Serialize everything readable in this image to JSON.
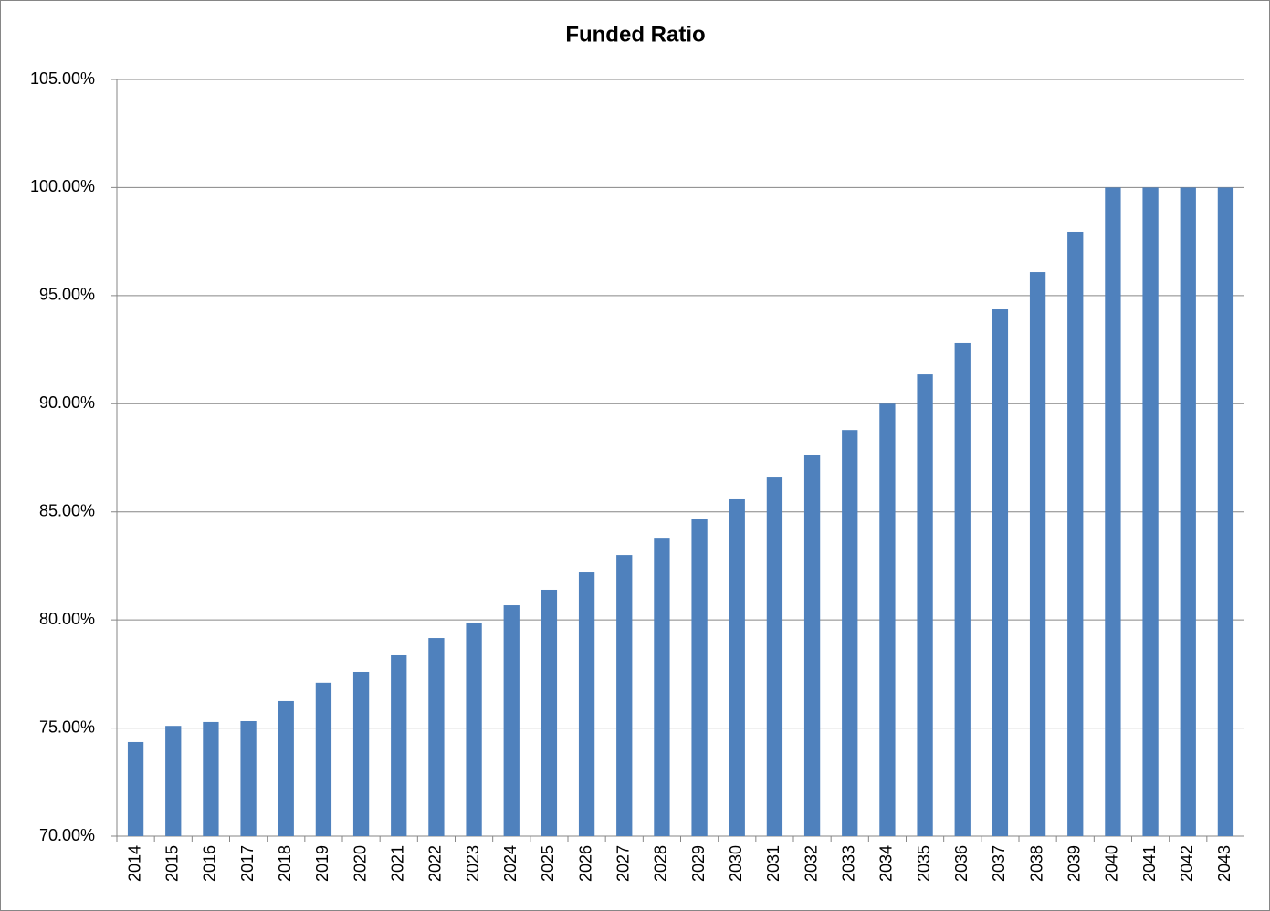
{
  "chart_data": {
    "type": "bar",
    "title": "Funded Ratio",
    "categories": [
      "2014",
      "2015",
      "2016",
      "2017",
      "2018",
      "2019",
      "2020",
      "2021",
      "2022",
      "2023",
      "2024",
      "2025",
      "2026",
      "2027",
      "2028",
      "2029",
      "2030",
      "2031",
      "2032",
      "2033",
      "2034",
      "2035",
      "2036",
      "2037",
      "2038",
      "2039",
      "2040",
      "2041",
      "2042",
      "2043"
    ],
    "values": [
      74.35,
      75.1,
      75.28,
      75.32,
      76.25,
      77.1,
      77.6,
      78.36,
      79.16,
      79.88,
      80.68,
      81.4,
      82.2,
      83.0,
      83.8,
      84.65,
      85.58,
      86.59,
      87.64,
      88.78,
      90.0,
      91.36,
      92.8,
      94.36,
      96.09,
      97.95,
      100,
      100,
      100,
      100
    ],
    "color": "#4f81bd",
    "ylim": [
      70,
      105
    ],
    "yticks": [
      {
        "value": 70,
        "label": "70.00%"
      },
      {
        "value": 75,
        "label": "75.00%"
      },
      {
        "value": 80,
        "label": "80.00%"
      },
      {
        "value": 85,
        "label": "85.00%"
      },
      {
        "value": 90,
        "label": "90.00%"
      },
      {
        "value": 95,
        "label": "95.00%"
      },
      {
        "value": 100,
        "label": "100.00%"
      },
      {
        "value": 105,
        "label": "105.00%"
      }
    ],
    "grid": true
  }
}
